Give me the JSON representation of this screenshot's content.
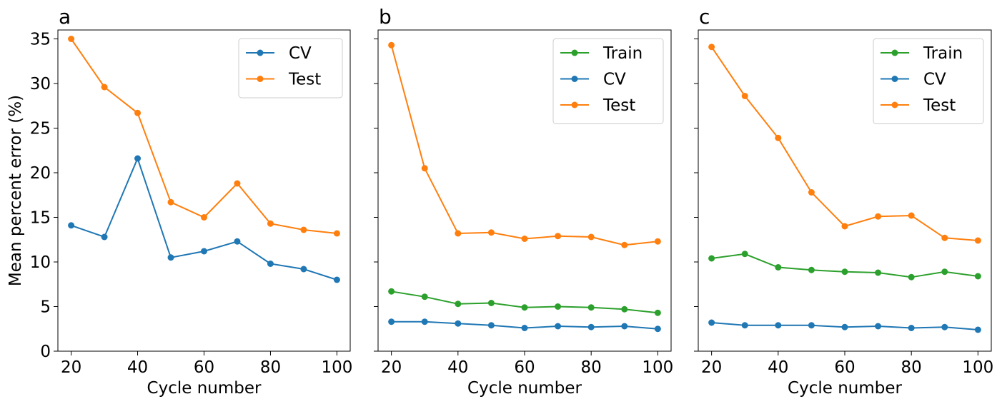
{
  "chart_data": [
    {
      "type": "line",
      "panel_label": "a",
      "xlabel": "Cycle number",
      "ylabel": "Mean percent error (%)",
      "xlim": [
        16,
        104
      ],
      "ylim": [
        0,
        36
      ],
      "xticks": [
        20,
        40,
        60,
        80,
        100
      ],
      "xtick_labels": [
        "20",
        "40",
        "60",
        "80",
        "100"
      ],
      "yticks": [
        0,
        5,
        10,
        15,
        20,
        25,
        30,
        35
      ],
      "ytick_labels": [
        "0",
        "5",
        "10",
        "15",
        "20",
        "25",
        "30",
        "35"
      ],
      "show_ytick_labels": true,
      "grid": false,
      "legend_position": "top-right",
      "x": [
        20,
        30,
        40,
        50,
        60,
        70,
        80,
        90,
        100
      ],
      "series": [
        {
          "name": "CV",
          "color": "#1f77b4",
          "values": [
            14.1,
            12.8,
            21.6,
            10.5,
            11.2,
            12.3,
            9.8,
            9.2,
            8.0
          ]
        },
        {
          "name": "Test",
          "color": "#ff7f0e",
          "values": [
            35.0,
            29.6,
            26.7,
            16.7,
            15.0,
            18.8,
            14.3,
            13.6,
            13.2
          ]
        }
      ]
    },
    {
      "type": "line",
      "panel_label": "b",
      "xlabel": "Cycle number",
      "ylabel": "",
      "xlim": [
        16,
        104
      ],
      "ylim": [
        0,
        36
      ],
      "xticks": [
        20,
        40,
        60,
        80,
        100
      ],
      "xtick_labels": [
        "20",
        "40",
        "60",
        "80",
        "100"
      ],
      "yticks": [
        0,
        5,
        10,
        15,
        20,
        25,
        30,
        35
      ],
      "ytick_labels": [
        "",
        "",
        "",
        "",
        "",
        "",
        "",
        ""
      ],
      "show_ytick_labels": false,
      "grid": false,
      "legend_position": "top-right",
      "x": [
        20,
        30,
        40,
        50,
        60,
        70,
        80,
        90,
        100
      ],
      "series": [
        {
          "name": "Train",
          "color": "#2ca02c",
          "values": [
            6.7,
            6.1,
            5.3,
            5.4,
            4.9,
            5.0,
            4.9,
            4.7,
            4.3
          ]
        },
        {
          "name": "CV",
          "color": "#1f77b4",
          "values": [
            3.3,
            3.3,
            3.1,
            2.9,
            2.6,
            2.8,
            2.7,
            2.8,
            2.5
          ]
        },
        {
          "name": "Test",
          "color": "#ff7f0e",
          "values": [
            34.3,
            20.5,
            13.2,
            13.3,
            12.6,
            12.9,
            12.8,
            11.9,
            12.3
          ]
        }
      ]
    },
    {
      "type": "line",
      "panel_label": "c",
      "xlabel": "Cycle number",
      "ylabel": "",
      "xlim": [
        16,
        104
      ],
      "ylim": [
        0,
        36
      ],
      "xticks": [
        20,
        40,
        60,
        80,
        100
      ],
      "xtick_labels": [
        "20",
        "40",
        "60",
        "80",
        "100"
      ],
      "yticks": [
        0,
        5,
        10,
        15,
        20,
        25,
        30,
        35
      ],
      "ytick_labels": [
        "",
        "",
        "",
        "",
        "",
        "",
        "",
        ""
      ],
      "show_ytick_labels": false,
      "grid": false,
      "legend_position": "top-right",
      "x": [
        20,
        30,
        40,
        50,
        60,
        70,
        80,
        90,
        100
      ],
      "series": [
        {
          "name": "Train",
          "color": "#2ca02c",
          "values": [
            10.4,
            10.9,
            9.4,
            9.1,
            8.9,
            8.8,
            8.3,
            8.9,
            8.4
          ]
        },
        {
          "name": "CV",
          "color": "#1f77b4",
          "values": [
            3.2,
            2.9,
            2.9,
            2.9,
            2.7,
            2.8,
            2.6,
            2.7,
            2.4
          ]
        },
        {
          "name": "Test",
          "color": "#ff7f0e",
          "values": [
            34.1,
            28.6,
            23.9,
            17.8,
            14.0,
            15.1,
            15.2,
            12.7,
            12.4
          ]
        }
      ]
    }
  ]
}
